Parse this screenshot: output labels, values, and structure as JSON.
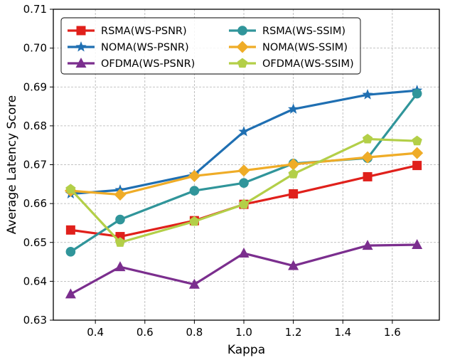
{
  "chart_data": {
    "type": "line",
    "title": "",
    "xlabel": "Kappa",
    "ylabel": "Average Latency Score",
    "xlim": [
      0.23,
      1.79
    ],
    "ylim": [
      0.63,
      0.71
    ],
    "xticks": [
      0.4,
      0.6,
      0.8,
      1.0,
      1.2,
      1.4,
      1.6
    ],
    "xtick_labels": [
      "0.4",
      "0.6",
      "0.8",
      "1.0",
      "1.2",
      "1.4",
      "1.6"
    ],
    "yticks": [
      0.63,
      0.64,
      0.65,
      0.66,
      0.67,
      0.68,
      0.69,
      0.7,
      0.71
    ],
    "ytick_labels": [
      "0.63",
      "0.64",
      "0.65",
      "0.66",
      "0.67",
      "0.68",
      "0.69",
      "0.70",
      "0.71"
    ],
    "grid": true,
    "legend_position": "top-left",
    "x": [
      0.3,
      0.5,
      0.8,
      1.0,
      1.2,
      1.5,
      1.7
    ],
    "series": [
      {
        "name": "RSMA(WS-PSNR)",
        "color": "#e0201b",
        "marker": "square",
        "values": [
          0.6532,
          0.6515,
          0.6556,
          0.6598,
          0.6625,
          0.6669,
          0.6698
        ]
      },
      {
        "name": "NOMA(WS-PSNR)",
        "color": "#1f6fb2",
        "marker": "star",
        "values": [
          0.6625,
          0.6635,
          0.6675,
          0.6785,
          0.6843,
          0.688,
          0.6891
        ]
      },
      {
        "name": "OFDMA(WS-PSNR)",
        "color": "#7b2e8e",
        "marker": "triangle",
        "values": [
          0.6367,
          0.6437,
          0.6392,
          0.6472,
          0.644,
          0.6492,
          0.6494
        ]
      },
      {
        "name": "RSMA(WS-SSIM)",
        "color": "#30959a",
        "marker": "circle",
        "values": [
          0.6476,
          0.6559,
          0.6633,
          0.6653,
          0.6703,
          0.6717,
          0.6883
        ]
      },
      {
        "name": "NOMA(WS-SSIM)",
        "color": "#efac27",
        "marker": "diamond",
        "values": [
          0.6633,
          0.6623,
          0.6671,
          0.6685,
          0.6701,
          0.6719,
          0.673
        ]
      },
      {
        "name": "OFDMA(WS-SSIM)",
        "color": "#b3cf48",
        "marker": "pentagon",
        "values": [
          0.6637,
          0.65,
          0.6554,
          0.6598,
          0.6676,
          0.6766,
          0.6761
        ]
      }
    ]
  }
}
